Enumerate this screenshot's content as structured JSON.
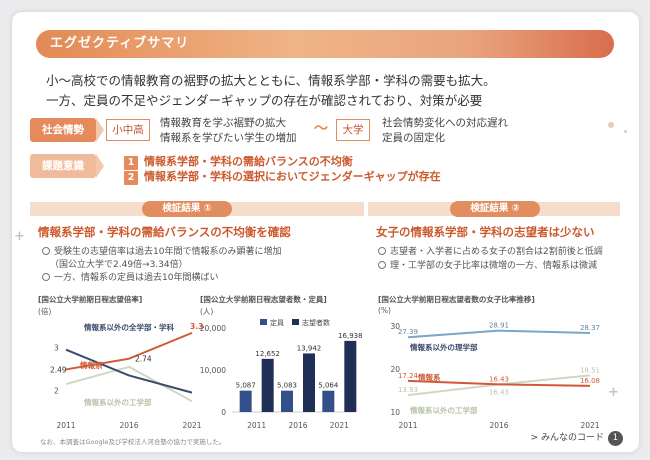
{
  "header": {
    "title": "エグゼクティブサマリ"
  },
  "summary": {
    "line1": "小〜高校での情報教育の裾野の拡大とともに、情報系学部・学科の需要も拡大。",
    "line2": "一方、定員の不足やジェンダーギャップの存在が確認されており、対策が必要"
  },
  "social": {
    "label": "社会情勢",
    "school_label": "小中高",
    "school_line1": "情報教育を学ぶ裾野の拡大",
    "school_line2": "情報系を学びたい学生の増加",
    "univ_label": "大学",
    "univ_line1": "社会情勢変化への対応遅れ",
    "univ_line2": "定員の固定化"
  },
  "issues": {
    "label": "課題意識",
    "items": [
      {
        "num": "1",
        "text": "情報系学部・学科の需給バランスの不均衡"
      },
      {
        "num": "2",
        "text": "情報系学部・学科の選択においてジェンダーギャップが存在"
      }
    ]
  },
  "finding1": {
    "header": "検証結果 ①",
    "title": "情報系学部・学科の需給バランスの不均衡を確認",
    "bullet1": "受験生の志望倍率は過去10年間で情報系のみ顕著に増加",
    "bullet1_sub": "（国公立大学で2.49倍→3.34倍）",
    "bullet2": "一方、情報系の定員は過去10年間横ばい"
  },
  "finding2": {
    "header": "検証結果 ②",
    "title": "女子の情報系学部・学科の志望者は少ない",
    "bullet1": "志望者・入学者に占める女子の割合は2割前後と低調",
    "bullet2": "理・工学部の女子比率は微増の一方、情報系は微減"
  },
  "charts": {
    "ratio": {
      "title": "[国公立大学前期日程志望倍率]",
      "unit": "(倍)"
    },
    "counts": {
      "title": "[国公立大学前期日程志望者数・定員]",
      "unit": "(人)"
    },
    "female": {
      "title": "[国公立大学前期日程志望者数の女子比率推移]",
      "unit": "(%)"
    }
  },
  "chart_data": [
    {
      "type": "line",
      "x": [
        "2011",
        "2016",
        "2021"
      ],
      "ylim": [
        1.5,
        3.5
      ],
      "yticks": [
        "2",
        "3",
        "4"
      ],
      "series": [
        {
          "name": "情報系以外の全学部・学科",
          "values": [
            2.95,
            2.35,
            1.95
          ],
          "color": "#3b4a6b"
        },
        {
          "name": "情報系",
          "values": [
            2.49,
            2.74,
            3.34
          ],
          "color": "#cf5a35"
        },
        {
          "name": "情報系以外の工学部",
          "values": [
            2.15,
            2.55,
            1.75
          ],
          "color": "#cfd8c4"
        }
      ],
      "data_labels": [
        "2.49",
        "2.74",
        "3.34"
      ]
    },
    {
      "type": "bar",
      "categories": [
        "2011",
        "2016",
        "2021"
      ],
      "ylim": [
        0,
        20000
      ],
      "yticks": [
        "0",
        "10,000",
        "20,000"
      ],
      "series": [
        {
          "name": "定員",
          "values": [
            5087,
            5083,
            5064
          ],
          "color": "#33508a"
        },
        {
          "name": "志望者数",
          "values": [
            12652,
            13942,
            16938
          ],
          "color": "#1f2f55"
        }
      ],
      "value_labels": [
        [
          "5,087",
          "5,083",
          "5,064"
        ],
        [
          "12,652",
          "13,942",
          "16,938"
        ]
      ]
    },
    {
      "type": "line",
      "x": [
        "2011",
        "2016",
        "2021"
      ],
      "ylim": [
        10,
        30
      ],
      "yticks": [
        "10",
        "20",
        "30"
      ],
      "series": [
        {
          "name": "情報系以外の理学部",
          "values": [
            27.39,
            28.91,
            28.37
          ],
          "color": "#7aa7c7"
        },
        {
          "name": "情報系",
          "values": [
            17.24,
            16.43,
            16.08
          ],
          "color": "#cf5a35"
        },
        {
          "name": "情報系以外の工学部",
          "values": [
            13.93,
            16.43,
            18.51
          ],
          "color": "#cfd8c4"
        }
      ],
      "value_labels": [
        [
          "27.39",
          "28.91",
          "28.37"
        ],
        [
          "17.24",
          "16.43",
          "16.08"
        ],
        [
          "13.93",
          "16.43",
          "18.51"
        ]
      ]
    }
  ],
  "footer": {
    "note": "なお、本調査はGoogle及び学校法人河合塾の協力で実施した。",
    "link": "> みんなのコード",
    "page": "1"
  }
}
